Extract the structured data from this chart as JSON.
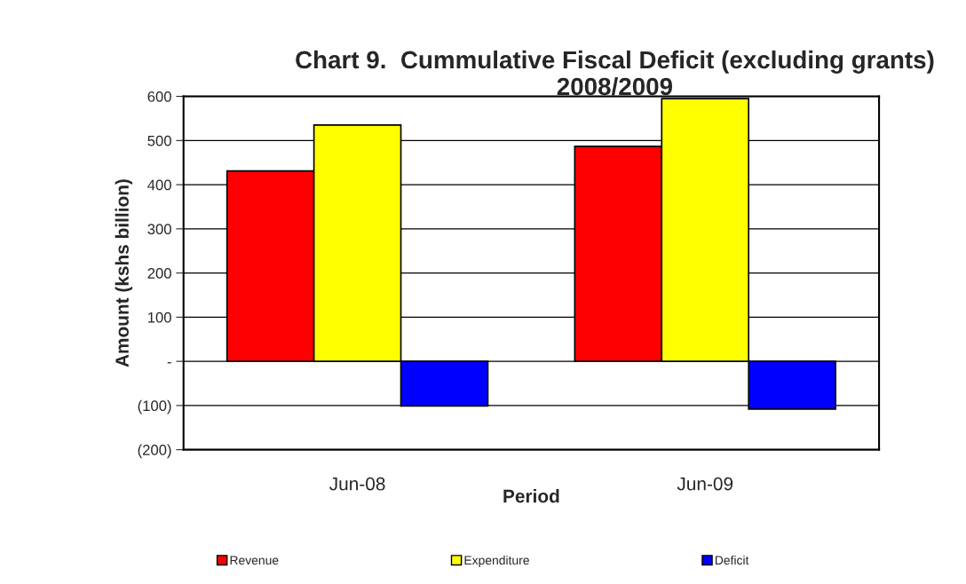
{
  "chart_data": {
    "type": "bar",
    "title": "Chart 9.  Cummulative Fiscal Deficit (excluding grants) 2008/2009",
    "xlabel": "Period",
    "ylabel": "Amount (kshs billion)",
    "categories": [
      "Jun-08",
      "Jun-09"
    ],
    "series": [
      {
        "name": "Revenue",
        "color": "#ff0000",
        "values": [
          431,
          487
        ]
      },
      {
        "name": "Expenditure",
        "color": "#ffff00",
        "values": [
          535,
          595
        ]
      },
      {
        "name": "Deficit",
        "color": "#0000ff",
        "values": [
          -101,
          -108
        ]
      }
    ],
    "ylim": [
      -200,
      600
    ],
    "yticks": [
      {
        "value": -200,
        "label": "(200)"
      },
      {
        "value": -100,
        "label": "(100)"
      },
      {
        "value": 0,
        "label": "-"
      },
      100,
      200,
      300,
      400,
      500,
      600
    ],
    "grid": "y",
    "legend": "bottom"
  }
}
